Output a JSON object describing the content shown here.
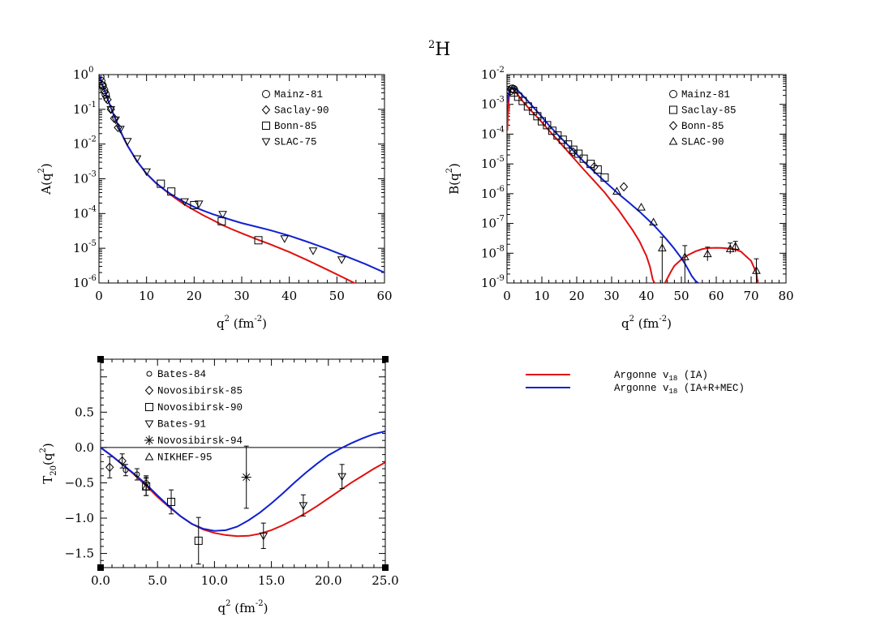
{
  "title": {
    "base": "H",
    "sup": "2"
  },
  "colors": {
    "ia": "#e01010",
    "mec": "#1020d0"
  },
  "chart_data": [
    {
      "id": "A",
      "type": "scatter",
      "ylabel": {
        "base": "A(q",
        "sup": "2",
        "tail": ")"
      },
      "xlabel": {
        "base": "q",
        "sup": "2",
        "mid": " (fm",
        "sup2": "-2",
        "tail": ")"
      },
      "xlim": [
        0,
        60
      ],
      "ylim": [
        1e-06,
        1
      ],
      "log_y": true,
      "xticks": [
        0,
        10,
        20,
        30,
        40,
        50,
        60
      ],
      "xtick_labels": [
        "0",
        "10",
        "20",
        "30",
        "40",
        "50",
        "60"
      ],
      "yticks": [
        1,
        0.1,
        0.01,
        0.001,
        0.0001,
        1e-05,
        1e-06
      ],
      "ytick_labels": [
        {
          "b": "10",
          "e": "0"
        },
        {
          "b": "10",
          "e": "-1"
        },
        {
          "b": "10",
          "e": "-2"
        },
        {
          "b": "10",
          "e": "-3"
        },
        {
          "b": "10",
          "e": "-4"
        },
        {
          "b": "10",
          "e": "-5"
        },
        {
          "b": "10",
          "e": "-6"
        }
      ],
      "legend": [
        {
          "label": "Mainz-81",
          "marker": "circle"
        },
        {
          "label": "Saclay-90",
          "marker": "diamond"
        },
        {
          "label": "Bonn-85",
          "marker": "square"
        },
        {
          "label": "SLAC-75",
          "marker": "tridown"
        }
      ],
      "curves": [
        {
          "name": "ia",
          "x": [
            0,
            0.5,
            1,
            1.5,
            2,
            3,
            4,
            5,
            6,
            8,
            10,
            12,
            14,
            16,
            18,
            20,
            22,
            24,
            26,
            28,
            30,
            33,
            36,
            40,
            44,
            48,
            52,
            54
          ],
          "y": [
            1,
            0.6,
            0.4,
            0.26,
            0.17,
            0.075,
            0.035,
            0.017,
            0.009,
            0.0032,
            0.0014,
            0.00075,
            0.00045,
            0.00028,
            0.00018,
            0.000125,
            8.8e-05,
            6.4e-05,
            4.6e-05,
            3.5e-05,
            2.7e-05,
            1.85e-05,
            1.3e-05,
            7.8e-06,
            4.4e-06,
            2.4e-06,
            1.3e-06,
            9.5e-07
          ]
        },
        {
          "name": "mec",
          "x": [
            0,
            0.5,
            1,
            1.5,
            2,
            3,
            4,
            5,
            6,
            8,
            10,
            12,
            14,
            16,
            18,
            20,
            22,
            24,
            26,
            28,
            30,
            33,
            36,
            40,
            44,
            48,
            52,
            56,
            60
          ],
          "y": [
            1,
            0.6,
            0.4,
            0.26,
            0.17,
            0.075,
            0.035,
            0.017,
            0.009,
            0.0032,
            0.0014,
            0.00075,
            0.00046,
            0.0003,
            0.00021,
            0.000155,
            0.00012,
            9.5e-05,
            7.8e-05,
            6.4e-05,
            5.3e-05,
            4.2e-05,
            3.3e-05,
            2.3e-05,
            1.5e-05,
            9.5e-06,
            5.8e-06,
            3.5e-06,
            2e-06
          ]
        }
      ],
      "points": [
        {
          "series": "Mainz-81",
          "marker": "circle",
          "x": [
            0.3,
            0.5,
            0.8,
            1.1,
            1.4
          ],
          "y": [
            0.85,
            0.65,
            0.48,
            0.36,
            0.27
          ]
        },
        {
          "series": "Saclay-90",
          "marker": "diamond",
          "x": [
            0.7,
            1.2,
            1.8,
            2.5,
            3.2,
            4.0
          ],
          "y": [
            0.5,
            0.32,
            0.19,
            0.1,
            0.055,
            0.03
          ]
        },
        {
          "series": "Bonn-85",
          "marker": "square",
          "x": [
            13,
            15.2,
            20,
            25.8,
            33.5
          ],
          "y": [
            0.00072,
            0.00043,
            0.000175,
            6e-05,
            1.7e-05
          ]
        },
        {
          "series": "SLAC-75",
          "marker": "tridown",
          "x": [
            1.5,
            2.5,
            3.5,
            4.5,
            6,
            8,
            10,
            18,
            21,
            26,
            39,
            45,
            51
          ],
          "y": [
            0.2,
            0.1,
            0.05,
            0.027,
            0.012,
            0.0038,
            0.0016,
            0.00022,
            0.00019,
            9.5e-05,
            1.9e-05,
            8.5e-06,
            4.7e-06
          ]
        }
      ]
    },
    {
      "id": "B",
      "type": "scatter",
      "ylabel": {
        "base": "B(q",
        "sup": "2",
        "tail": ")"
      },
      "xlabel": {
        "base": "q",
        "sup": "2",
        "mid": " (fm",
        "sup2": "-2",
        "tail": ")"
      },
      "xlim": [
        0,
        80
      ],
      "ylim": [
        1e-09,
        0.01
      ],
      "log_y": true,
      "xticks": [
        0,
        10,
        20,
        30,
        40,
        50,
        60,
        70,
        80
      ],
      "xtick_labels": [
        "0",
        "10",
        "20",
        "30",
        "40",
        "50",
        "60",
        "70",
        "80"
      ],
      "yticks": [
        0.01,
        0.001,
        0.0001,
        1e-05,
        1e-06,
        1e-07,
        1e-08,
        1e-09
      ],
      "ytick_labels": [
        {
          "b": "10",
          "e": "-2"
        },
        {
          "b": "10",
          "e": "-3"
        },
        {
          "b": "10",
          "e": "-4"
        },
        {
          "b": "10",
          "e": "-5"
        },
        {
          "b": "10",
          "e": "-6"
        },
        {
          "b": "10",
          "e": "-7"
        },
        {
          "b": "10",
          "e": "-8"
        },
        {
          "b": "10",
          "e": "-9"
        }
      ],
      "legend": [
        {
          "label": "Mainz-81",
          "marker": "circle"
        },
        {
          "label": "Saclay-85",
          "marker": "square"
        },
        {
          "label": "Bonn-85",
          "marker": "diamond"
        },
        {
          "label": "SLAC-90",
          "marker": "triup"
        }
      ],
      "curves": [
        {
          "name": "ia",
          "segments": [
            {
              "x": [
                0.1,
                0.3,
                0.6,
                1,
                1.5,
                2,
                3,
                4,
                6,
                8,
                10,
                12,
                15,
                18,
                20,
                22,
                25,
                28,
                30,
                32,
                34,
                36,
                38,
                40,
                41,
                41.8,
                42.3
              ],
              "y": [
                0.00013,
                0.0006,
                0.0018,
                0.003,
                0.0034,
                0.003,
                0.0022,
                0.0015,
                0.0008,
                0.00045,
                0.00025,
                0.000135,
                5.5e-05,
                2.2e-05,
                1.2e-05,
                6.5e-06,
                2.7e-06,
                1.1e-06,
                5.5e-07,
                2.8e-07,
                1.3e-07,
                6e-08,
                2.5e-08,
                8e-09,
                3.5e-09,
                1.3e-09,
                1e-09
              ]
            },
            {
              "x": [
                45.3,
                45.8,
                47,
                48,
                50,
                52,
                54,
                56,
                58,
                60,
                62,
                65,
                67,
                70,
                71.5,
                71.9
              ],
              "y": [
                1e-09,
                1.3e-09,
                2.4e-09,
                3.8e-09,
                6.2e-09,
                8.8e-09,
                1.15e-08,
                1.38e-08,
                1.5e-08,
                1.52e-08,
                1.5e-08,
                1.38e-08,
                1.15e-08,
                5.5e-09,
                2.2e-09,
                1e-09
              ]
            }
          ]
        },
        {
          "name": "mec",
          "segments": [
            {
              "x": [
                0.1,
                0.3,
                0.6,
                1,
                1.5,
                2,
                3,
                4,
                6,
                8,
                10,
                12,
                15,
                18,
                20,
                22,
                25,
                28,
                30,
                32,
                35,
                38,
                40,
                42,
                44,
                46,
                48,
                50,
                51,
                52,
                53,
                54,
                54.8
              ],
              "y": [
                0.0011,
                0.0018,
                0.0026,
                0.0033,
                0.0037,
                0.0036,
                0.003,
                0.0023,
                0.0013,
                0.0007,
                0.00038,
                0.0002,
                8.5e-05,
                3.7e-05,
                2.1e-05,
                1.2e-05,
                5.5e-06,
                2.6e-06,
                1.6e-06,
                9.8e-07,
                5e-07,
                2.5e-07,
                1.5e-07,
                9e-08,
                5e-08,
                2.7e-08,
                1.4e-08,
                6.8e-09,
                4.5e-09,
                2.8e-09,
                1.7e-09,
                1.2e-09,
                1e-09
              ]
            }
          ]
        }
      ],
      "points": [
        {
          "series": "Mainz-81",
          "marker": "circle",
          "x": [
            1,
            1.3,
            1.6,
            2
          ],
          "y": [
            0.0028,
            0.0033,
            0.0034,
            0.0032
          ]
        },
        {
          "series": "Saclay-85",
          "marker": "square",
          "x": [
            2,
            3.2,
            4.5,
            6,
            7.5,
            8.7,
            10,
            11.5,
            13,
            14.5,
            16,
            17.5,
            19,
            20.5,
            22,
            24,
            26,
            28
          ],
          "y": [
            0.0025,
            0.0018,
            0.0013,
            0.00085,
            0.0006,
            0.0004,
            0.00027,
            0.0002,
            0.00013,
            9e-05,
            6.5e-05,
            4.5e-05,
            3e-05,
            2.2e-05,
            1.5e-05,
            1e-05,
            6.5e-06,
            3.5e-06
          ]
        },
        {
          "series": "Bonn-85",
          "marker": "diamond",
          "x": [
            19,
            25,
            33.5
          ],
          "y": [
            2.5e-05,
            8e-06,
            1.7e-06
          ]
        },
        {
          "series": "SLAC-90",
          "marker": "triup",
          "x": [
            31.5,
            38.5,
            42,
            44.5,
            51,
            57.5,
            64,
            65.5,
            71.5
          ],
          "y": [
            1.2e-06,
            3.5e-07,
            1.1e-07,
            1.5e-08,
            7.5e-09,
            9.5e-09,
            1.4e-08,
            1.7e-08,
            2.6e-09
          ],
          "yerr_hi": [
            null,
            null,
            null,
            3.5e-08,
            1.8e-08,
            1.6e-08,
            2.2e-08,
            2.5e-08,
            6.5e-09
          ],
          "yerr_lo": [
            null,
            null,
            null,
            1e-09,
            1e-09,
            5.5e-09,
            9.5e-09,
            1.1e-08,
            1e-09
          ]
        }
      ]
    },
    {
      "id": "T20",
      "type": "scatter",
      "ylabel": {
        "base": "T",
        "sub": "20",
        "mid": "(q",
        "sup": "2",
        "tail": ")"
      },
      "xlabel": {
        "base": "q",
        "sup": "2",
        "mid": " (fm",
        "sup2": "-2",
        "tail": ")"
      },
      "xlim": [
        0,
        25
      ],
      "ylim": [
        -1.7,
        1.25
      ],
      "log_y": false,
      "xticks": [
        0,
        5,
        10,
        15,
        20,
        25
      ],
      "xtick_labels": [
        "0.0",
        "5.0",
        "10.0",
        "15.0",
        "20.0",
        "25.0"
      ],
      "yticks": [
        0.5,
        0.0,
        -0.5,
        -1.0,
        -1.5
      ],
      "ytick_labels": [
        "0.5",
        "0.0",
        "−0.5",
        "−1.0",
        "−1.5"
      ],
      "legend": [
        {
          "label": "Bates-84",
          "marker": "smallcircle"
        },
        {
          "label": "Novosibirsk-85",
          "marker": "diamond"
        },
        {
          "label": "Novosibirsk-90",
          "marker": "square"
        },
        {
          "label": "Bates-91",
          "marker": "tridown"
        },
        {
          "label": "Novosibirsk-94",
          "marker": "star"
        },
        {
          "label": "NIKHEF-95",
          "marker": "triup"
        }
      ],
      "curves": [
        {
          "name": "ia",
          "x": [
            0,
            1,
            2,
            3,
            4,
            5,
            6,
            7,
            8,
            9,
            10,
            11,
            12,
            13,
            14,
            15,
            16,
            17,
            18,
            19,
            20,
            21,
            22,
            23,
            24,
            25
          ],
          "y": [
            0,
            -0.12,
            -0.25,
            -0.39,
            -0.54,
            -0.7,
            -0.84,
            -0.97,
            -1.08,
            -1.16,
            -1.21,
            -1.24,
            -1.255,
            -1.25,
            -1.22,
            -1.17,
            -1.1,
            -1.02,
            -0.93,
            -0.83,
            -0.72,
            -0.61,
            -0.5,
            -0.4,
            -0.3,
            -0.21
          ]
        },
        {
          "name": "mec",
          "x": [
            0,
            1,
            2,
            3,
            4,
            5,
            6,
            7,
            8,
            9,
            10,
            11,
            12,
            13,
            14,
            15,
            16,
            17,
            18,
            19,
            20,
            21,
            22,
            23,
            24,
            25
          ],
          "y": [
            0,
            -0.12,
            -0.25,
            -0.38,
            -0.52,
            -0.68,
            -0.83,
            -0.97,
            -1.08,
            -1.15,
            -1.18,
            -1.17,
            -1.12,
            -1.03,
            -0.92,
            -0.79,
            -0.65,
            -0.5,
            -0.36,
            -0.23,
            -0.11,
            -0.02,
            0.06,
            0.13,
            0.19,
            0.23
          ]
        }
      ],
      "points": [
        {
          "series": "Bates-84",
          "marker": "smallcircle",
          "x": [
            2.2,
            3.2,
            4.0
          ],
          "y": [
            -0.32,
            -0.38,
            -0.5
          ],
          "yerr": [
            0.08,
            0.08,
            0.1
          ]
        },
        {
          "series": "Novosibirsk-85",
          "marker": "diamond",
          "x": [
            0.8,
            1.9
          ],
          "y": [
            -0.28,
            -0.19
          ],
          "yerr": [
            0.15,
            0.1
          ]
        },
        {
          "series": "Novosibirsk-90",
          "marker": "square",
          "x": [
            4.0,
            6.2,
            8.6
          ],
          "y": [
            -0.55,
            -0.77,
            -1.32
          ],
          "yerr": [
            0.13,
            0.17,
            0.33
          ]
        },
        {
          "series": "Bates-91",
          "marker": "tridown",
          "x": [
            14.3,
            17.8,
            21.2
          ],
          "y": [
            -1.25,
            -0.82,
            -0.41
          ],
          "yerr": [
            0.18,
            0.15,
            0.17
          ]
        },
        {
          "series": "Novosibirsk-94",
          "marker": "star",
          "x": [
            12.8
          ],
          "y": [
            -0.42
          ],
          "yerr": [
            0.44
          ]
        },
        {
          "series": "NIKHEF-95",
          "marker": "triup",
          "x": [
            4.0
          ],
          "y": [
            -0.56
          ],
          "yerr": [
            0.12
          ]
        }
      ]
    }
  ],
  "legend_models": [
    {
      "color_key": "ia",
      "base": "Argonne v",
      "sub": "18",
      "tail": " (IA)"
    },
    {
      "color_key": "mec",
      "base": "Argonne v",
      "sub": "18",
      "tail": " (IA+R+MEC)"
    }
  ]
}
